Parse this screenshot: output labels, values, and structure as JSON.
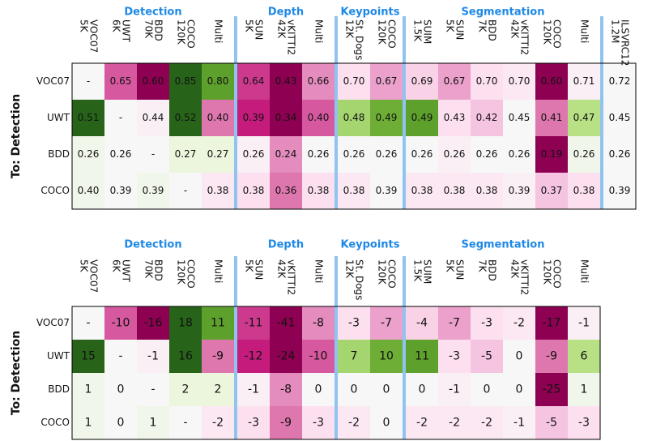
{
  "row_axis_label": "To: Detection",
  "colormap": {
    "name": "PiYG",
    "vmin": -15,
    "vmax": 15
  },
  "tables": [
    {
      "groups": [
        {
          "name": "Detection",
          "columns": [
            [
              "VOC07",
              "5K"
            ],
            [
              "UWT",
              "6K"
            ],
            [
              "BDD",
              "70K"
            ],
            [
              "COCO",
              "120K"
            ],
            [
              "Multi"
            ]
          ]
        },
        {
          "name": "Depth",
          "columns": [
            [
              "SUN",
              "5K"
            ],
            [
              "vKITTI2",
              "42K"
            ],
            [
              "Multi"
            ]
          ]
        },
        {
          "name": "Keypoints",
          "columns": [
            [
              "St. Dogs",
              "12K"
            ],
            [
              "COCO",
              "120K"
            ]
          ]
        },
        {
          "name": "Segmentation",
          "columns": [
            [
              "SUIM",
              "1.5K"
            ],
            [
              "SUN",
              "5K"
            ],
            [
              "BDD",
              "7K"
            ],
            [
              "vKITTI2",
              "42K"
            ],
            [
              "COCO",
              "120K"
            ],
            [
              "Multi"
            ]
          ]
        },
        {
          "columns": [
            [
              "ILSVRC12",
              "1.2M"
            ]
          ]
        }
      ],
      "rows": [
        {
          "label": "VOC07",
          "cells": [
            "-",
            "0.65",
            "0.60",
            "0.85",
            "0.80",
            "0.64",
            "0.43",
            "0.66",
            "0.70",
            "0.67",
            "0.69",
            "0.67",
            "0.70",
            "0.70",
            "0.60",
            "0.71",
            "0.72"
          ]
        },
        {
          "label": "UWT",
          "cells": [
            "0.51",
            "-",
            "0.44",
            "0.52",
            "0.40",
            "0.39",
            "0.34",
            "0.40",
            "0.48",
            "0.49",
            "0.49",
            "0.43",
            "0.42",
            "0.45",
            "0.41",
            "0.47",
            "0.45"
          ]
        },
        {
          "label": "BDD",
          "cells": [
            "0.26",
            "0.26",
            "-",
            "0.27",
            "0.27",
            "0.26",
            "0.24",
            "0.26",
            "0.26",
            "0.26",
            "0.26",
            "0.26",
            "0.26",
            "0.26",
            "0.19",
            "0.26",
            "0.26"
          ]
        },
        {
          "label": "COCO",
          "cells": [
            "0.40",
            "0.39",
            "0.39",
            "-",
            "0.38",
            "0.38",
            "0.36",
            "0.38",
            "0.38",
            "0.39",
            "0.38",
            "0.38",
            "0.38",
            "0.39",
            "0.37",
            "0.38",
            "0.39"
          ]
        }
      ]
    },
    {
      "groups": [
        {
          "name": "Detection",
          "columns": [
            [
              "VOC07",
              "5K"
            ],
            [
              "UWT",
              "6K"
            ],
            [
              "BDD",
              "70K"
            ],
            [
              "COCO",
              "120K"
            ],
            [
              "Multi"
            ]
          ]
        },
        {
          "name": "Depth",
          "columns": [
            [
              "SUN",
              "5K"
            ],
            [
              "vKITTI2",
              "42K"
            ],
            [
              "Multi"
            ]
          ]
        },
        {
          "name": "Keypoints",
          "columns": [
            [
              "St. Dogs",
              "12K"
            ],
            [
              "COCO",
              "120K"
            ]
          ]
        },
        {
          "name": "Segmentation",
          "columns": [
            [
              "SUIM",
              "1.5K"
            ],
            [
              "SUN",
              "5K"
            ],
            [
              "BDD",
              "7K"
            ],
            [
              "vKITTI2",
              "42K"
            ],
            [
              "COCO",
              "120K"
            ],
            [
              "Multi"
            ]
          ]
        }
      ],
      "rows": [
        {
          "label": "VOC07",
          "cells": [
            "-",
            "-10",
            "-16",
            "18",
            "11",
            "-11",
            "-41",
            "-8",
            "-3",
            "-7",
            "-4",
            "-7",
            "-3",
            "-2",
            "-17",
            "-1"
          ]
        },
        {
          "label": "UWT",
          "cells": [
            "15",
            "-",
            "-1",
            "16",
            "-9",
            "-12",
            "-24",
            "-10",
            "7",
            "10",
            "11",
            "-3",
            "-5",
            "0",
            "-9",
            "6"
          ]
        },
        {
          "label": "BDD",
          "cells": [
            "1",
            "0",
            "-",
            "2",
            "2",
            "-1",
            "-8",
            "0",
            "0",
            "0",
            "0",
            "-1",
            "0",
            "0",
            "-25",
            "1"
          ]
        },
        {
          "label": "COCO",
          "cells": [
            "1",
            "0",
            "1",
            "-",
            "-2",
            "-3",
            "-9",
            "-3",
            "-2",
            "0",
            "-2",
            "-2",
            "-2",
            "-1",
            "-5",
            "-3"
          ]
        }
      ]
    }
  ]
}
